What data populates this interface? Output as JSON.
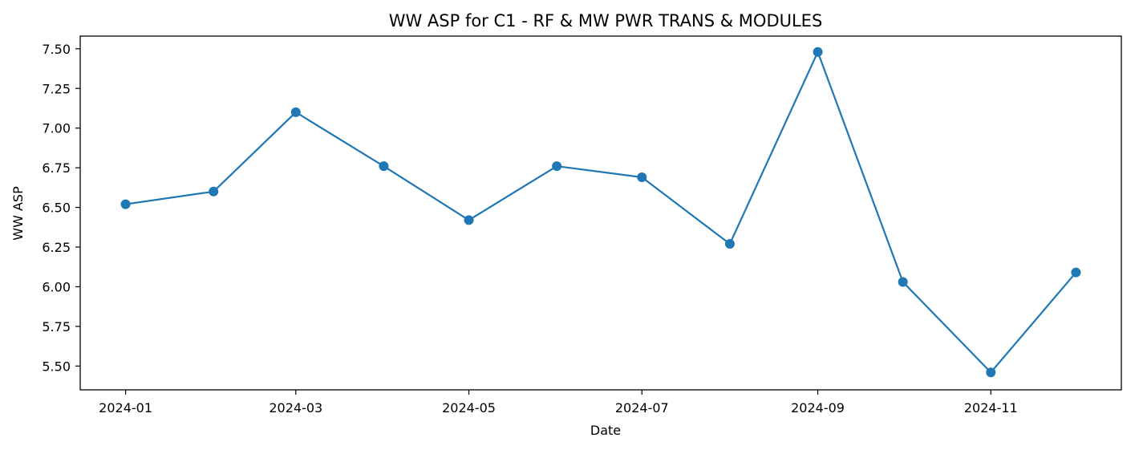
{
  "chart_data": {
    "type": "line",
    "title": "WW ASP for C1 - RF & MW PWR TRANS & MODULES",
    "xlabel": "Date",
    "ylabel": "WW ASP",
    "x_tick_labels": [
      "2024-01",
      "2024-03",
      "2024-05",
      "2024-07",
      "2024-09",
      "2024-11"
    ],
    "y_tick_labels": [
      "5.50",
      "5.75",
      "6.00",
      "6.25",
      "6.50",
      "6.75",
      "7.00",
      "7.25",
      "7.50"
    ],
    "xlim": [
      "2023-12-16",
      "2024-12-17"
    ],
    "ylim": [
      5.35,
      7.58
    ],
    "grid": false,
    "legend": "none",
    "series": [
      {
        "color": "#1f77b4",
        "marker": "circle",
        "points": [
          {
            "x": "2024-01-01",
            "y": 6.52
          },
          {
            "x": "2024-02-01",
            "y": 6.6
          },
          {
            "x": "2024-03-01",
            "y": 7.1
          },
          {
            "x": "2024-04-01",
            "y": 6.76
          },
          {
            "x": "2024-05-01",
            "y": 6.42
          },
          {
            "x": "2024-06-01",
            "y": 6.76
          },
          {
            "x": "2024-07-01",
            "y": 6.69
          },
          {
            "x": "2024-08-01",
            "y": 6.27
          },
          {
            "x": "2024-09-01",
            "y": 7.48
          },
          {
            "x": "2024-10-01",
            "y": 6.03
          },
          {
            "x": "2024-11-01",
            "y": 5.46
          },
          {
            "x": "2024-12-01",
            "y": 6.09
          }
        ]
      }
    ]
  }
}
